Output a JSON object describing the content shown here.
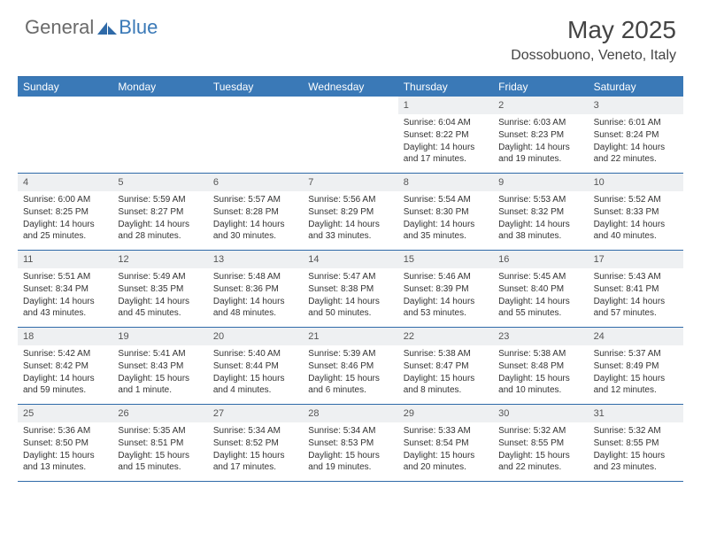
{
  "brand": {
    "part1": "General",
    "part2": "Blue"
  },
  "title": "May 2025",
  "location": "Dossobuono, Veneto, Italy",
  "colors": {
    "header_bg": "#3a79b7",
    "rule": "#2f6aa8",
    "daynum_bg": "#eef0f2",
    "text": "#333333",
    "logo_gray": "#6a6a6a"
  },
  "weekdays": [
    "Sunday",
    "Monday",
    "Tuesday",
    "Wednesday",
    "Thursday",
    "Friday",
    "Saturday"
  ],
  "weeks": [
    [
      {
        "n": "",
        "sunrise": "",
        "sunset": "",
        "daylight": ""
      },
      {
        "n": "",
        "sunrise": "",
        "sunset": "",
        "daylight": ""
      },
      {
        "n": "",
        "sunrise": "",
        "sunset": "",
        "daylight": ""
      },
      {
        "n": "",
        "sunrise": "",
        "sunset": "",
        "daylight": ""
      },
      {
        "n": "1",
        "sunrise": "Sunrise: 6:04 AM",
        "sunset": "Sunset: 8:22 PM",
        "daylight": "Daylight: 14 hours and 17 minutes."
      },
      {
        "n": "2",
        "sunrise": "Sunrise: 6:03 AM",
        "sunset": "Sunset: 8:23 PM",
        "daylight": "Daylight: 14 hours and 19 minutes."
      },
      {
        "n": "3",
        "sunrise": "Sunrise: 6:01 AM",
        "sunset": "Sunset: 8:24 PM",
        "daylight": "Daylight: 14 hours and 22 minutes."
      }
    ],
    [
      {
        "n": "4",
        "sunrise": "Sunrise: 6:00 AM",
        "sunset": "Sunset: 8:25 PM",
        "daylight": "Daylight: 14 hours and 25 minutes."
      },
      {
        "n": "5",
        "sunrise": "Sunrise: 5:59 AM",
        "sunset": "Sunset: 8:27 PM",
        "daylight": "Daylight: 14 hours and 28 minutes."
      },
      {
        "n": "6",
        "sunrise": "Sunrise: 5:57 AM",
        "sunset": "Sunset: 8:28 PM",
        "daylight": "Daylight: 14 hours and 30 minutes."
      },
      {
        "n": "7",
        "sunrise": "Sunrise: 5:56 AM",
        "sunset": "Sunset: 8:29 PM",
        "daylight": "Daylight: 14 hours and 33 minutes."
      },
      {
        "n": "8",
        "sunrise": "Sunrise: 5:54 AM",
        "sunset": "Sunset: 8:30 PM",
        "daylight": "Daylight: 14 hours and 35 minutes."
      },
      {
        "n": "9",
        "sunrise": "Sunrise: 5:53 AM",
        "sunset": "Sunset: 8:32 PM",
        "daylight": "Daylight: 14 hours and 38 minutes."
      },
      {
        "n": "10",
        "sunrise": "Sunrise: 5:52 AM",
        "sunset": "Sunset: 8:33 PM",
        "daylight": "Daylight: 14 hours and 40 minutes."
      }
    ],
    [
      {
        "n": "11",
        "sunrise": "Sunrise: 5:51 AM",
        "sunset": "Sunset: 8:34 PM",
        "daylight": "Daylight: 14 hours and 43 minutes."
      },
      {
        "n": "12",
        "sunrise": "Sunrise: 5:49 AM",
        "sunset": "Sunset: 8:35 PM",
        "daylight": "Daylight: 14 hours and 45 minutes."
      },
      {
        "n": "13",
        "sunrise": "Sunrise: 5:48 AM",
        "sunset": "Sunset: 8:36 PM",
        "daylight": "Daylight: 14 hours and 48 minutes."
      },
      {
        "n": "14",
        "sunrise": "Sunrise: 5:47 AM",
        "sunset": "Sunset: 8:38 PM",
        "daylight": "Daylight: 14 hours and 50 minutes."
      },
      {
        "n": "15",
        "sunrise": "Sunrise: 5:46 AM",
        "sunset": "Sunset: 8:39 PM",
        "daylight": "Daylight: 14 hours and 53 minutes."
      },
      {
        "n": "16",
        "sunrise": "Sunrise: 5:45 AM",
        "sunset": "Sunset: 8:40 PM",
        "daylight": "Daylight: 14 hours and 55 minutes."
      },
      {
        "n": "17",
        "sunrise": "Sunrise: 5:43 AM",
        "sunset": "Sunset: 8:41 PM",
        "daylight": "Daylight: 14 hours and 57 minutes."
      }
    ],
    [
      {
        "n": "18",
        "sunrise": "Sunrise: 5:42 AM",
        "sunset": "Sunset: 8:42 PM",
        "daylight": "Daylight: 14 hours and 59 minutes."
      },
      {
        "n": "19",
        "sunrise": "Sunrise: 5:41 AM",
        "sunset": "Sunset: 8:43 PM",
        "daylight": "Daylight: 15 hours and 1 minute."
      },
      {
        "n": "20",
        "sunrise": "Sunrise: 5:40 AM",
        "sunset": "Sunset: 8:44 PM",
        "daylight": "Daylight: 15 hours and 4 minutes."
      },
      {
        "n": "21",
        "sunrise": "Sunrise: 5:39 AM",
        "sunset": "Sunset: 8:46 PM",
        "daylight": "Daylight: 15 hours and 6 minutes."
      },
      {
        "n": "22",
        "sunrise": "Sunrise: 5:38 AM",
        "sunset": "Sunset: 8:47 PM",
        "daylight": "Daylight: 15 hours and 8 minutes."
      },
      {
        "n": "23",
        "sunrise": "Sunrise: 5:38 AM",
        "sunset": "Sunset: 8:48 PM",
        "daylight": "Daylight: 15 hours and 10 minutes."
      },
      {
        "n": "24",
        "sunrise": "Sunrise: 5:37 AM",
        "sunset": "Sunset: 8:49 PM",
        "daylight": "Daylight: 15 hours and 12 minutes."
      }
    ],
    [
      {
        "n": "25",
        "sunrise": "Sunrise: 5:36 AM",
        "sunset": "Sunset: 8:50 PM",
        "daylight": "Daylight: 15 hours and 13 minutes."
      },
      {
        "n": "26",
        "sunrise": "Sunrise: 5:35 AM",
        "sunset": "Sunset: 8:51 PM",
        "daylight": "Daylight: 15 hours and 15 minutes."
      },
      {
        "n": "27",
        "sunrise": "Sunrise: 5:34 AM",
        "sunset": "Sunset: 8:52 PM",
        "daylight": "Daylight: 15 hours and 17 minutes."
      },
      {
        "n": "28",
        "sunrise": "Sunrise: 5:34 AM",
        "sunset": "Sunset: 8:53 PM",
        "daylight": "Daylight: 15 hours and 19 minutes."
      },
      {
        "n": "29",
        "sunrise": "Sunrise: 5:33 AM",
        "sunset": "Sunset: 8:54 PM",
        "daylight": "Daylight: 15 hours and 20 minutes."
      },
      {
        "n": "30",
        "sunrise": "Sunrise: 5:32 AM",
        "sunset": "Sunset: 8:55 PM",
        "daylight": "Daylight: 15 hours and 22 minutes."
      },
      {
        "n": "31",
        "sunrise": "Sunrise: 5:32 AM",
        "sunset": "Sunset: 8:55 PM",
        "daylight": "Daylight: 15 hours and 23 minutes."
      }
    ]
  ]
}
